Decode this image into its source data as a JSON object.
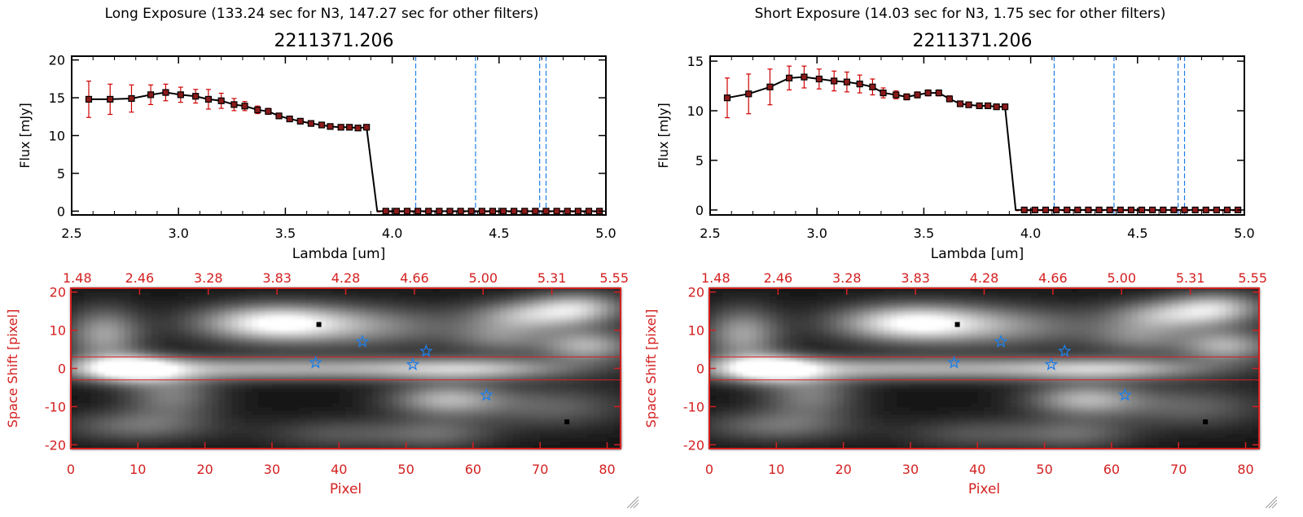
{
  "panels": [
    {
      "header": "Long Exposure (133.24 sec for N3, 147.27 sec for other filters)",
      "object_id": "2211371.206",
      "top_y_ticks": [
        "0",
        "5",
        "10",
        "15",
        "20"
      ]
    },
    {
      "header": "Short Exposure (14.03 sec for N3, 1.75 sec for other filters)",
      "object_id": "2211371.206",
      "top_y_ticks": [
        "0",
        "5",
        "10",
        "15"
      ]
    }
  ],
  "labels": {
    "flux_axis": "Flux [mJy]",
    "lambda_axis": "Lambda [um]",
    "lambda_ticks": [
      "2.5",
      "3.0",
      "3.5",
      "4.0",
      "4.5",
      "5.0"
    ],
    "space_axis": "Space Shift [pixel]",
    "space_ticks": [
      "20",
      "10",
      "0",
      "-10",
      "-20"
    ],
    "pixel_axis": "Pixel",
    "pixel_ticks": [
      "0",
      "10",
      "20",
      "30",
      "40",
      "50",
      "60",
      "70",
      "80"
    ],
    "wave_ticks": [
      "1.48",
      "2.46",
      "3.28",
      "3.83",
      "4.28",
      "4.66",
      "5.00",
      "5.31",
      "5.55"
    ]
  },
  "colors": {
    "spectrum": "#000000",
    "error_bars": "#d00000",
    "marker_fill": "#8b1a1a",
    "filter_lines": "#1e7ee8",
    "zero_line": "#d00000",
    "image_axes": "#d42020",
    "star_markers": "#1e7ee8"
  },
  "chart_data": [
    {
      "type": "line",
      "title": "2211371.206",
      "xlabel": "Lambda [um]",
      "ylabel": "Flux [mJy]",
      "xlim": [
        2.5,
        5.0
      ],
      "ylim": [
        -0.5,
        20.5
      ],
      "x": [
        2.58,
        2.68,
        2.78,
        2.87,
        2.94,
        3.01,
        3.08,
        3.14,
        3.2,
        3.26,
        3.31,
        3.37,
        3.42,
        3.47,
        3.52,
        3.57,
        3.62,
        3.67,
        3.71,
        3.76,
        3.8,
        3.84,
        3.88
      ],
      "y": [
        14.8,
        14.8,
        14.9,
        15.4,
        15.7,
        15.4,
        15.2,
        14.8,
        14.6,
        14.1,
        13.9,
        13.4,
        13.2,
        12.6,
        12.2,
        11.9,
        11.6,
        11.4,
        11.2,
        11.1,
        11.1,
        11.0,
        11.1
      ],
      "yerr": [
        2.4,
        2.0,
        1.8,
        1.3,
        1.1,
        1.0,
        0.9,
        1.3,
        1.0,
        0.8,
        0.6,
        0.5,
        0.4,
        0.3,
        0.3,
        0.2,
        0.2,
        0.2,
        0.2,
        0.2,
        0.2,
        0.2,
        0.2
      ],
      "drop_to_zero_at": 3.93,
      "zero_x": [
        3.97,
        4.02,
        4.07,
        4.12,
        4.17,
        4.22,
        4.27,
        4.32,
        4.37,
        4.42,
        4.47,
        4.52,
        4.57,
        4.62,
        4.67,
        4.72,
        4.77,
        4.82,
        4.87,
        4.92,
        4.97
      ],
      "vlines": [
        4.11,
        4.39,
        4.69,
        4.72
      ]
    },
    {
      "type": "line",
      "title": "2211371.206",
      "xlabel": "Lambda [um]",
      "ylabel": "Flux [mJy]",
      "xlim": [
        2.5,
        5.0
      ],
      "ylim": [
        -0.5,
        15.5
      ],
      "x": [
        2.58,
        2.68,
        2.78,
        2.87,
        2.94,
        3.01,
        3.08,
        3.14,
        3.2,
        3.26,
        3.31,
        3.37,
        3.42,
        3.47,
        3.52,
        3.57,
        3.62,
        3.67,
        3.71,
        3.76,
        3.8,
        3.84,
        3.88
      ],
      "y": [
        11.3,
        11.7,
        12.4,
        13.3,
        13.4,
        13.2,
        13.0,
        12.9,
        12.7,
        12.4,
        11.8,
        11.6,
        11.4,
        11.6,
        11.8,
        11.8,
        11.2,
        10.7,
        10.6,
        10.5,
        10.5,
        10.4,
        10.4
      ],
      "yerr": [
        2.0,
        2.0,
        1.8,
        1.2,
        1.1,
        1.0,
        1.0,
        1.0,
        0.9,
        0.8,
        0.5,
        0.4,
        0.3,
        0.3,
        0.3,
        0.3,
        0.3,
        0.2,
        0.2,
        0.2,
        0.2,
        0.2,
        0.2
      ],
      "drop_to_zero_at": 3.93,
      "zero_x": [
        3.97,
        4.02,
        4.07,
        4.12,
        4.17,
        4.22,
        4.27,
        4.32,
        4.37,
        4.42,
        4.47,
        4.52,
        4.57,
        4.62,
        4.67,
        4.72,
        4.77,
        4.82,
        4.87,
        4.92,
        4.97
      ],
      "vlines": [
        4.11,
        4.39,
        4.69,
        4.72
      ]
    },
    {
      "type": "heatmap",
      "xlabel": "Pixel",
      "ylabel": "Space Shift [pixel]",
      "xlim": [
        0,
        82
      ],
      "ylim": [
        -21,
        21
      ],
      "extraction_band": [
        -3,
        3
      ],
      "stars": [
        [
          36.5,
          1.5
        ],
        [
          43.5,
          7
        ],
        [
          51,
          1
        ],
        [
          53,
          4.5
        ],
        [
          62,
          -7
        ]
      ],
      "black_dots": [
        [
          37,
          11.5
        ],
        [
          74,
          -14
        ]
      ],
      "blobs": [
        {
          "x": 5,
          "y": 9,
          "sx": 4,
          "sy": 5,
          "v": 0.55
        },
        {
          "x": 30,
          "y": 12,
          "sx": 8,
          "sy": 3.5,
          "v": 0.85
        },
        {
          "x": 45,
          "y": 11,
          "sx": 10,
          "sy": 4,
          "v": 0.4
        },
        {
          "x": 28,
          "y": 0,
          "sx": 25,
          "sy": 2.2,
          "v": 0.6
        },
        {
          "x": 9,
          "y": 0,
          "sx": 5,
          "sy": 2.5,
          "v": 0.75
        },
        {
          "x": 15,
          "y": -7,
          "sx": 5,
          "sy": 4,
          "v": 0.4
        },
        {
          "x": 56,
          "y": -8,
          "sx": 6,
          "sy": 3,
          "v": 0.6
        },
        {
          "x": 68,
          "y": 14,
          "sx": 6,
          "sy": 3,
          "v": 0.55
        },
        {
          "x": 76,
          "y": 16,
          "sx": 5,
          "sy": 3,
          "v": 0.6
        },
        {
          "x": 77,
          "y": 6,
          "sx": 5,
          "sy": 3,
          "v": 0.6
        },
        {
          "x": 64,
          "y": 8,
          "sx": 5,
          "sy": 3,
          "v": 0.35
        },
        {
          "x": 60,
          "y": 0,
          "sx": 10,
          "sy": 2,
          "v": 0.45
        },
        {
          "x": 72,
          "y": -10,
          "sx": 8,
          "sy": 4,
          "v": 0.3
        },
        {
          "x": 10,
          "y": -15,
          "sx": 8,
          "sy": 3,
          "v": 0.35
        },
        {
          "x": 40,
          "y": -17,
          "sx": 8,
          "sy": 3,
          "v": 0.25
        },
        {
          "x": 55,
          "y": -17,
          "sx": 6,
          "sy": 3,
          "v": 0.3
        }
      ]
    }
  ]
}
